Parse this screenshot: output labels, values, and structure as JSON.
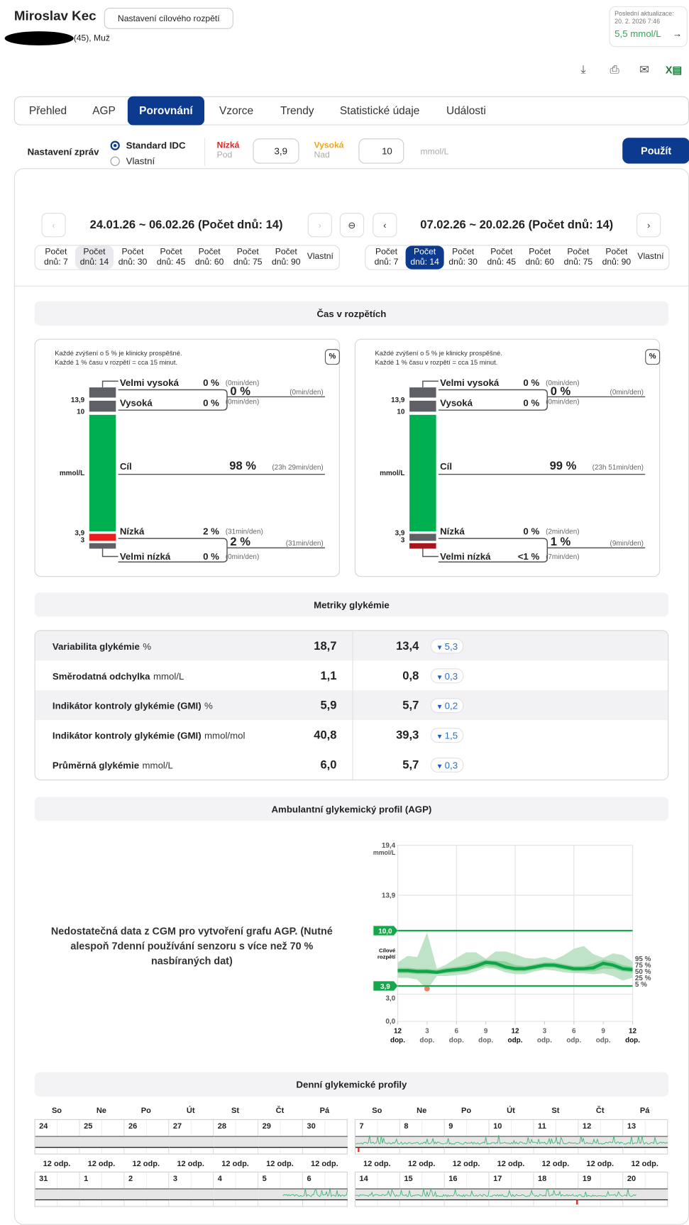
{
  "header": {
    "patient_name": "Miroslav Kec",
    "target_button": "Nastavení cílového rozpětí",
    "patient_info": "(45), Muž",
    "last_update_label": "Poslední aktualizace:",
    "last_update_time": "20. 2. 2026 7:46",
    "last_value": "5,5 mmol/L",
    "arrow": "→"
  },
  "toolbar_icons": [
    "download-icon",
    "print-icon",
    "mail-icon",
    "excel-icon"
  ],
  "tabs": [
    {
      "label": "Přehled"
    },
    {
      "label": "AGP"
    },
    {
      "label": "Porovnání",
      "active": true
    },
    {
      "label": "Vzorce"
    },
    {
      "label": "Trendy"
    },
    {
      "label": "Statistické údaje"
    },
    {
      "label": "Události"
    }
  ],
  "report_settings": {
    "label": "Nastavení zpráv",
    "options": [
      "Standard IDC",
      "Vlastní"
    ],
    "selected": "Standard IDC",
    "low_label": "Nízká",
    "low_sub": "Pod",
    "low_value": "3,9",
    "high_label": "Vysoká",
    "high_sub": "Nad",
    "high_value": "10",
    "unit": "mmol/L",
    "apply": "Použít",
    "low_color": "#e32222",
    "high_color": "#f2a51c"
  },
  "periods": {
    "left": {
      "title": "24.01.26 ~ 06.02.26 (Počet dnů: 14)",
      "selected": 1
    },
    "right": {
      "title": "07.02.26 ~ 20.02.26 (Počet dnů: 14)",
      "selected": 1
    },
    "options": [
      {
        "l1": "Počet",
        "l2": "dnů: 7"
      },
      {
        "l1": "Počet",
        "l2": "dnů: 14"
      },
      {
        "l1": "Počet",
        "l2": "dnů: 30"
      },
      {
        "l1": "Počet",
        "l2": "dnů: 45"
      },
      {
        "l1": "Počet",
        "l2": "dnů: 60"
      },
      {
        "l1": "Počet",
        "l2": "dnů: 75"
      },
      {
        "l1": "Počet",
        "l2": "dnů: 90"
      }
    ],
    "custom": "Vlastní"
  },
  "tir": {
    "title": "Čas v rozpětích",
    "note1": "Každé zvýšení o 5 % je klinicky prospěšné.",
    "note2": "Každé 1 % času v rozpětí = cca 15 minut.",
    "pct_button": "%",
    "axis": {
      "a": "13,9",
      "b": "10",
      "unit": "mmol/L",
      "c": "3,9",
      "d": "3"
    },
    "labels": {
      "vh": "Velmi vysoká",
      "h": "Vysoká",
      "t": "Cíl",
      "l": "Nízká",
      "vl": "Velmi nízká"
    },
    "panels": [
      {
        "vh": "0 %",
        "vh_m": "(0min/den)",
        "h": "0 %",
        "h_m": "(0min/den)",
        "high_sum": "0 %",
        "high_sum_m": "(0min/den)",
        "t": "98 %",
        "t_m": "(23h 29min/den)",
        "l": "2 %",
        "l_m": "(31min/den)",
        "vl": "0 %",
        "vl_m": "(0min/den)",
        "low_sum": "2 %",
        "low_sum_m": "(31min/den)",
        "colors": {
          "vh": "#5f5f66",
          "h": "#5f5f66",
          "t": "#00b050",
          "l": "#ee1c1c",
          "vl": "#5f5f66"
        }
      },
      {
        "vh": "0 %",
        "vh_m": "(0min/den)",
        "h": "0 %",
        "h_m": "(0min/den)",
        "high_sum": "0 %",
        "high_sum_m": "(0min/den)",
        "t": "99 %",
        "t_m": "(23h 51min/den)",
        "l": "0 %",
        "l_m": "(2min/den)",
        "vl": "<1 %",
        "vl_m": "(7min/den)",
        "low_sum": "1 %",
        "low_sum_m": "(9min/den)",
        "colors": {
          "vh": "#5f5f66",
          "h": "#5f5f66",
          "t": "#00b050",
          "l": "#5f5f66",
          "vl": "#a8151c"
        }
      }
    ]
  },
  "metrics": {
    "title": "Metriky glykémie",
    "rows": [
      {
        "label": "Variabilita glykémie",
        "unit": "%",
        "v1": "18,7",
        "v2": "13,4",
        "delta": "5,3"
      },
      {
        "label": "Směrodatná odchylka",
        "unit": "mmol/L",
        "v1": "1,1",
        "v2": "0,8",
        "delta": "0,3"
      },
      {
        "label": "Indikátor kontroly glykémie (GMI)",
        "unit": "%",
        "v1": "5,9",
        "v2": "5,7",
        "delta": "0,2"
      },
      {
        "label": "Indikátor kontroly glykémie (GMI)",
        "unit": "mmol/mol",
        "v1": "40,8",
        "v2": "39,3",
        "delta": "1,5"
      },
      {
        "label": "Průměrná glykémie",
        "unit": "mmol/L",
        "v1": "6,0",
        "v2": "5,7",
        "delta": "0,3"
      }
    ]
  },
  "agp": {
    "title": "Ambulantní glykemický profil (AGP)",
    "message": "Nedostatečná data z CGM pro vytvoření grafu AGP. (Nutné alespoň 7denní používání senzoru s více než 70 % nasbíraných dat)"
  },
  "chart_data": {
    "type": "area",
    "title": "Ambulantní glykemický profil (AGP)",
    "ylabel": "mmol/L",
    "ylim": [
      0,
      19.4
    ],
    "yticks": [
      "19,4",
      "13,9",
      "3,0",
      "0,0"
    ],
    "target_high": "10,0",
    "target_low": "3,9",
    "target_label": "Cílové rozpětí",
    "xticks": [
      [
        "12",
        "dop."
      ],
      [
        "3",
        "dop."
      ],
      [
        "6",
        "dop."
      ],
      [
        "9",
        "dop."
      ],
      [
        "12",
        "odp."
      ],
      [
        "3",
        "odp."
      ],
      [
        "6",
        "odp."
      ],
      [
        "9",
        "odp."
      ],
      [
        "12",
        "dop."
      ]
    ],
    "percentile_labels": [
      "95 %",
      "75 %",
      "50 %",
      "25 %",
      "5 %"
    ],
    "x_hours": [
      0,
      1,
      2,
      3,
      4,
      5,
      6,
      7,
      8,
      9,
      10,
      11,
      12,
      13,
      14,
      15,
      16,
      17,
      18,
      19,
      20,
      21,
      22,
      23,
      24
    ],
    "series": [
      {
        "name": "95 %",
        "values": [
          6.5,
          7.2,
          7.1,
          9.8,
          5.8,
          6.3,
          7.0,
          7.6,
          7.6,
          6.9,
          7.7,
          7.7,
          7.4,
          7.0,
          6.9,
          7.1,
          6.8,
          7.3,
          8.0,
          8.3,
          7.4,
          7.0,
          7.5,
          7.3,
          6.6
        ]
      },
      {
        "name": "75 %",
        "values": [
          5.9,
          5.9,
          5.8,
          5.8,
          5.7,
          5.9,
          6.0,
          6.2,
          6.5,
          6.8,
          6.7,
          6.6,
          6.2,
          6.1,
          6.3,
          6.5,
          6.5,
          6.3,
          6.1,
          6.1,
          6.4,
          6.8,
          6.6,
          6.2,
          6.0
        ]
      },
      {
        "name": "50 %",
        "values": [
          5.6,
          5.6,
          5.5,
          5.5,
          5.4,
          5.6,
          5.7,
          5.8,
          6.1,
          6.5,
          6.4,
          6.0,
          5.8,
          5.8,
          6.0,
          6.2,
          6.2,
          6.0,
          5.8,
          5.8,
          5.9,
          6.4,
          6.2,
          5.8,
          5.7
        ]
      },
      {
        "name": "25 %",
        "values": [
          5.3,
          5.3,
          5.2,
          5.2,
          5.2,
          5.3,
          5.4,
          5.5,
          5.8,
          6.1,
          6.0,
          5.7,
          5.5,
          5.5,
          5.7,
          5.9,
          5.9,
          5.7,
          5.5,
          5.5,
          5.5,
          5.8,
          5.8,
          5.5,
          5.4
        ]
      },
      {
        "name": "5 %",
        "values": [
          4.8,
          4.8,
          4.6,
          3.5,
          5.0,
          5.0,
          5.1,
          5.2,
          5.5,
          5.9,
          5.8,
          5.4,
          5.2,
          5.2,
          5.5,
          5.7,
          5.6,
          5.4,
          5.3,
          5.3,
          5.2,
          5.3,
          5.0,
          4.5,
          4.8
        ]
      }
    ],
    "colors": {
      "outer": "#bfe3c6",
      "inner": "#8fd19d",
      "median": "#0ea54a",
      "target": "#17a74b",
      "low": "#f07a6a"
    }
  },
  "daily": {
    "title": "Denní glykemické profily",
    "weekdays": [
      "So",
      "Ne",
      "Po",
      "Út",
      "St",
      "Čt",
      "Pá"
    ],
    "noon_label": "12 odp.",
    "left": [
      [
        {
          "d": "24"
        },
        {
          "d": "25"
        },
        {
          "d": "26"
        },
        {
          "d": "27"
        },
        {
          "d": "28"
        },
        {
          "d": "29"
        },
        {
          "d": "30"
        }
      ],
      [
        {
          "d": "31"
        },
        {
          "d": "1"
        },
        {
          "d": "2"
        },
        {
          "d": "3"
        },
        {
          "d": "4"
        },
        {
          "d": "5",
          "cov": [
            0.55,
            1
          ]
        },
        {
          "d": "6",
          "cov": [
            0,
            1
          ]
        }
      ]
    ],
    "right": [
      [
        {
          "d": "7",
          "cov": [
            0,
            1
          ],
          "low": true
        },
        {
          "d": "8",
          "cov": [
            0,
            1
          ]
        },
        {
          "d": "9",
          "cov": [
            0,
            1
          ]
        },
        {
          "d": "10",
          "cov": [
            0,
            1
          ]
        },
        {
          "d": "11",
          "cov": [
            0,
            1
          ]
        },
        {
          "d": "12",
          "cov": [
            0,
            1
          ]
        },
        {
          "d": "13",
          "cov": [
            0,
            1
          ]
        }
      ],
      [
        {
          "d": "14",
          "cov": [
            0,
            1
          ]
        },
        {
          "d": "15",
          "cov": [
            0,
            1
          ]
        },
        {
          "d": "16",
          "cov": [
            0,
            1
          ]
        },
        {
          "d": "17",
          "cov": [
            0,
            1
          ]
        },
        {
          "d": "18",
          "cov": [
            0,
            1
          ],
          "lowEnd": true
        },
        {
          "d": "19",
          "cov": [
            0,
            1
          ]
        },
        {
          "d": "20",
          "cov": [
            0,
            0.3
          ]
        }
      ]
    ]
  }
}
